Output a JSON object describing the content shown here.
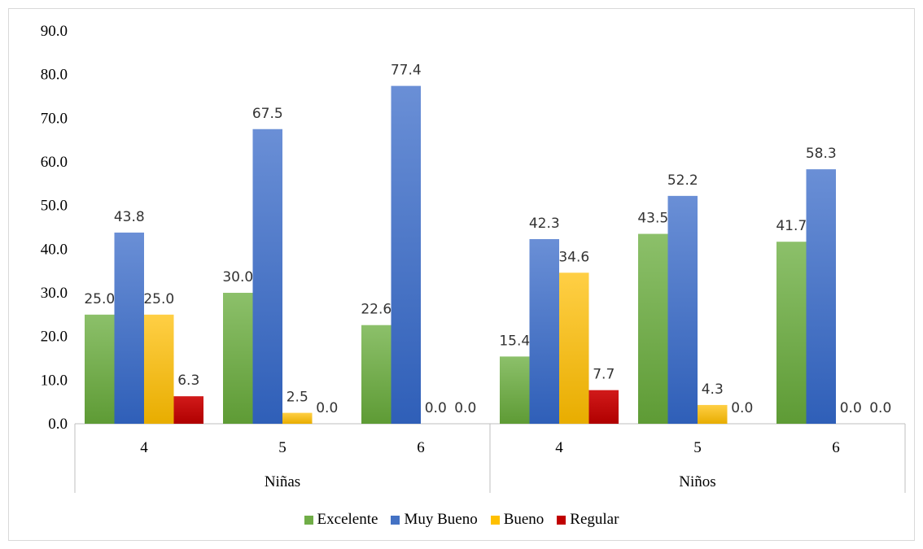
{
  "chart_data": {
    "type": "bar",
    "groups": [
      {
        "name": "Niñas",
        "categories": [
          "4",
          "5",
          "6"
        ]
      },
      {
        "name": "Niños",
        "categories": [
          "4",
          "5",
          "6"
        ]
      }
    ],
    "series": [
      {
        "name": "Excelente",
        "color": "#70ad47",
        "values": [
          25.0,
          30.0,
          22.6,
          15.4,
          43.5,
          41.7
        ],
        "labels": [
          "25.0",
          "30.0",
          "22.6",
          "15.4",
          "43.5",
          "41.7"
        ]
      },
      {
        "name": "Muy Bueno",
        "color": "#4472c4",
        "values": [
          43.8,
          67.5,
          77.4,
          42.3,
          52.2,
          58.3
        ],
        "labels": [
          "43.8",
          "67.5",
          "77.4",
          "42.3",
          "52.2",
          "58.3"
        ]
      },
      {
        "name": "Bueno",
        "color": "#ffc000",
        "values": [
          25.0,
          2.5,
          0.0,
          34.6,
          4.3,
          0.0
        ],
        "labels": [
          "25.0",
          "2.5",
          "0.0",
          "34.6",
          "4.3",
          "0.0"
        ]
      },
      {
        "name": "Regular",
        "color": "#c00000",
        "values": [
          6.3,
          0.0,
          0.0,
          7.7,
          0.0,
          0.0
        ],
        "labels": [
          "6.3",
          "0.0",
          "0.0",
          "7.7",
          "0.0",
          "0.0"
        ]
      }
    ],
    "ylim": [
      0,
      90
    ],
    "yticks": [
      "0.0",
      "10.0",
      "20.0",
      "30.0",
      "40.0",
      "50.0",
      "60.0",
      "70.0",
      "80.0",
      "90.0"
    ],
    "grid": false,
    "legend_position": "bottom"
  }
}
